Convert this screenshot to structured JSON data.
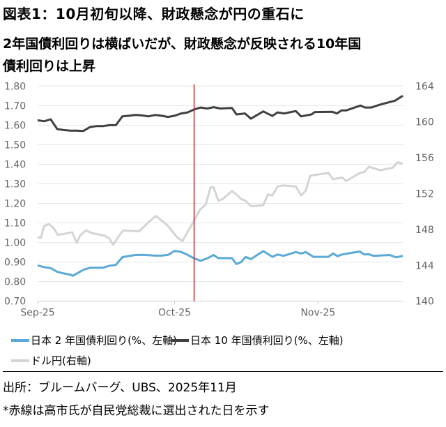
{
  "title": {
    "line1": "図表1：10月初旬以降、財政懸念が円の重石に",
    "line2": "2年国債利回りは横ばいだが、財政懸念が反映される10年国",
    "line3": "債利回りは上昇"
  },
  "chart_data": {
    "type": "line",
    "title": "図表1：10月初旬以降、財政懸念が円の重石に",
    "x_unit": "trading-day index from 2025-09-01",
    "xlim": [
      0,
      56
    ],
    "x_ticks": [
      {
        "x": 0,
        "label": "Sep-25"
      },
      {
        "x": 21,
        "label": "Oct-25"
      },
      {
        "x": 43,
        "label": "Nov-25"
      }
    ],
    "ylim_left": [
      0.7,
      1.8
    ],
    "y_ticks_left": [
      "0.70",
      "0.80",
      "0.90",
      "1.00",
      "1.10",
      "1.20",
      "1.30",
      "1.40",
      "1.50",
      "1.60",
      "1.70",
      "1.80"
    ],
    "ylim_right": [
      140,
      164
    ],
    "y_ticks_right": [
      "140",
      "144",
      "148",
      "152",
      "156",
      "160",
      "164"
    ],
    "grid": true,
    "legend_placement": "bottom",
    "vline": {
      "x": 24,
      "color": "#c0272d",
      "meaning": "赤線"
    },
    "series": [
      {
        "name": "日本 2 年国債利回り(%、左軸)",
        "axis": "left",
        "color": "#5aa9d6",
        "points": [
          [
            0,
            0.883
          ],
          [
            1,
            0.874
          ],
          [
            2,
            0.869
          ],
          [
            3,
            0.85
          ],
          [
            4,
            0.842
          ],
          [
            5,
            0.836
          ],
          [
            5.4,
            0.83
          ],
          [
            7,
            0.86
          ],
          [
            8,
            0.871
          ],
          [
            9,
            0.871
          ],
          [
            10,
            0.871
          ],
          [
            11,
            0.881
          ],
          [
            12,
            0.886
          ],
          [
            13,
            0.925
          ],
          [
            14,
            0.931
          ],
          [
            15,
            0.936
          ],
          [
            16,
            0.937
          ],
          [
            17,
            0.935
          ],
          [
            18,
            0.933
          ],
          [
            19,
            0.933
          ],
          [
            20,
            0.937
          ],
          [
            21,
            0.957
          ],
          [
            22,
            0.952
          ],
          [
            23,
            0.937
          ],
          [
            24,
            0.919
          ],
          [
            25,
            0.907
          ],
          [
            26,
            0.919
          ],
          [
            27,
            0.936
          ],
          [
            27.7,
            0.92
          ],
          [
            29.8,
            0.92
          ],
          [
            30.5,
            0.89
          ],
          [
            31.2,
            0.9
          ],
          [
            31.9,
            0.926
          ],
          [
            32.7,
            0.915
          ],
          [
            34.6,
            0.956
          ],
          [
            36,
            0.927
          ],
          [
            36.8,
            0.939
          ],
          [
            37.7,
            0.932
          ],
          [
            39.6,
            0.951
          ],
          [
            40.4,
            0.944
          ],
          [
            41.1,
            0.951
          ],
          [
            42.3,
            0.927
          ],
          [
            44.6,
            0.927
          ],
          [
            45.3,
            0.944
          ],
          [
            46,
            0.93
          ],
          [
            46.7,
            0.939
          ],
          [
            49.4,
            0.954
          ],
          [
            50.1,
            0.939
          ],
          [
            50.8,
            0.94
          ],
          [
            51.5,
            0.932
          ],
          [
            54,
            0.936
          ],
          [
            55,
            0.924
          ],
          [
            56,
            0.932
          ]
        ]
      },
      {
        "name": "日本 10 年国債利回り(%、左軸)",
        "axis": "left",
        "color": "#404040",
        "points": [
          [
            0,
            1.625
          ],
          [
            1,
            1.62
          ],
          [
            2,
            1.63
          ],
          [
            3,
            1.58
          ],
          [
            4,
            1.575
          ],
          [
            5,
            1.572
          ],
          [
            6,
            1.572
          ],
          [
            7,
            1.57
          ],
          [
            8,
            1.59
          ],
          [
            9,
            1.595
          ],
          [
            10,
            1.595
          ],
          [
            11,
            1.6
          ],
          [
            12,
            1.6
          ],
          [
            13,
            1.645
          ],
          [
            14,
            1.648
          ],
          [
            15,
            1.652
          ],
          [
            16,
            1.65
          ],
          [
            17,
            1.645
          ],
          [
            18,
            1.652
          ],
          [
            19,
            1.648
          ],
          [
            20,
            1.642
          ],
          [
            21,
            1.648
          ],
          [
            22,
            1.66
          ],
          [
            23,
            1.665
          ],
          [
            24,
            1.68
          ],
          [
            25,
            1.69
          ],
          [
            26,
            1.685
          ],
          [
            27,
            1.692
          ],
          [
            28,
            1.685
          ],
          [
            29.8,
            1.688
          ],
          [
            30.5,
            1.655
          ],
          [
            31.8,
            1.66
          ],
          [
            32.7,
            1.633
          ],
          [
            34.6,
            1.67
          ],
          [
            36,
            1.647
          ],
          [
            36.8,
            1.665
          ],
          [
            37.8,
            1.66
          ],
          [
            39.6,
            1.672
          ],
          [
            40.4,
            1.645
          ],
          [
            42,
            1.655
          ],
          [
            42.5,
            1.667
          ],
          [
            45.2,
            1.668
          ],
          [
            45.9,
            1.66
          ],
          [
            46.6,
            1.675
          ],
          [
            47.3,
            1.675
          ],
          [
            49.5,
            1.7
          ],
          [
            50.2,
            1.69
          ],
          [
            51.2,
            1.69
          ],
          [
            52.5,
            1.705
          ],
          [
            54.8,
            1.725
          ],
          [
            56,
            1.75
          ]
        ]
      },
      {
        "name": "ドル円(右軸)",
        "axis": "right",
        "color": "#d4d4d4",
        "points": [
          [
            0,
            147.1
          ],
          [
            0.5,
            147.1
          ],
          [
            1,
            148.4
          ],
          [
            1.7,
            148.6
          ],
          [
            2.4,
            148.2
          ],
          [
            3.1,
            147.4
          ],
          [
            4,
            147.5
          ],
          [
            5.3,
            147.7
          ],
          [
            6,
            146.5
          ],
          [
            6.5,
            147.3
          ],
          [
            7.4,
            147.9
          ],
          [
            8.3,
            147.6
          ],
          [
            10.3,
            147.3
          ],
          [
            11,
            147.0
          ],
          [
            11.6,
            146.3
          ],
          [
            12.4,
            147.2
          ],
          [
            13.1,
            147.9
          ],
          [
            15.6,
            147.8
          ],
          [
            17,
            148.8
          ],
          [
            18.1,
            149.5
          ],
          [
            19.2,
            148.9
          ],
          [
            20,
            148.4
          ],
          [
            21.3,
            147.2
          ],
          [
            22.2,
            146.7
          ],
          [
            22.9,
            147.6
          ],
          [
            24,
            149.0
          ],
          [
            24.9,
            150.2
          ],
          [
            25.8,
            150.8
          ],
          [
            26.5,
            152.7
          ],
          [
            27,
            152.7
          ],
          [
            27.7,
            151.2
          ],
          [
            28.4,
            151.4
          ],
          [
            29.8,
            152.3
          ],
          [
            30.5,
            151.9
          ],
          [
            31.2,
            151.4
          ],
          [
            31.9,
            151.2
          ],
          [
            32.7,
            150.6
          ],
          [
            34.6,
            150.7
          ],
          [
            35.3,
            151.9
          ],
          [
            36,
            151.8
          ],
          [
            36.8,
            152.8
          ],
          [
            37.7,
            152.9
          ],
          [
            39.6,
            152.8
          ],
          [
            40.4,
            151.8
          ],
          [
            41.1,
            152.3
          ],
          [
            41.8,
            154.0
          ],
          [
            44.6,
            154.3
          ],
          [
            45.3,
            153.6
          ],
          [
            46.7,
            153.8
          ],
          [
            47.3,
            153.4
          ],
          [
            49.4,
            154.3
          ],
          [
            50.1,
            154.4
          ],
          [
            50.8,
            155.0
          ],
          [
            52.5,
            154.6
          ],
          [
            54.5,
            154.9
          ],
          [
            55.2,
            155.5
          ],
          [
            56,
            155.3
          ]
        ]
      }
    ]
  },
  "legend": {
    "jgb2": "日本 2 年国債利回り(%、左軸)",
    "jgb10": "日本 10 年国債利回り(%、左軸)",
    "usdjpy": "ドル円(右軸)"
  },
  "footer": {
    "source": "出所：ブルームバーグ、UBS、2025年11月",
    "note": "*赤線は高市氏が自民党総裁に選出された日を示す"
  }
}
